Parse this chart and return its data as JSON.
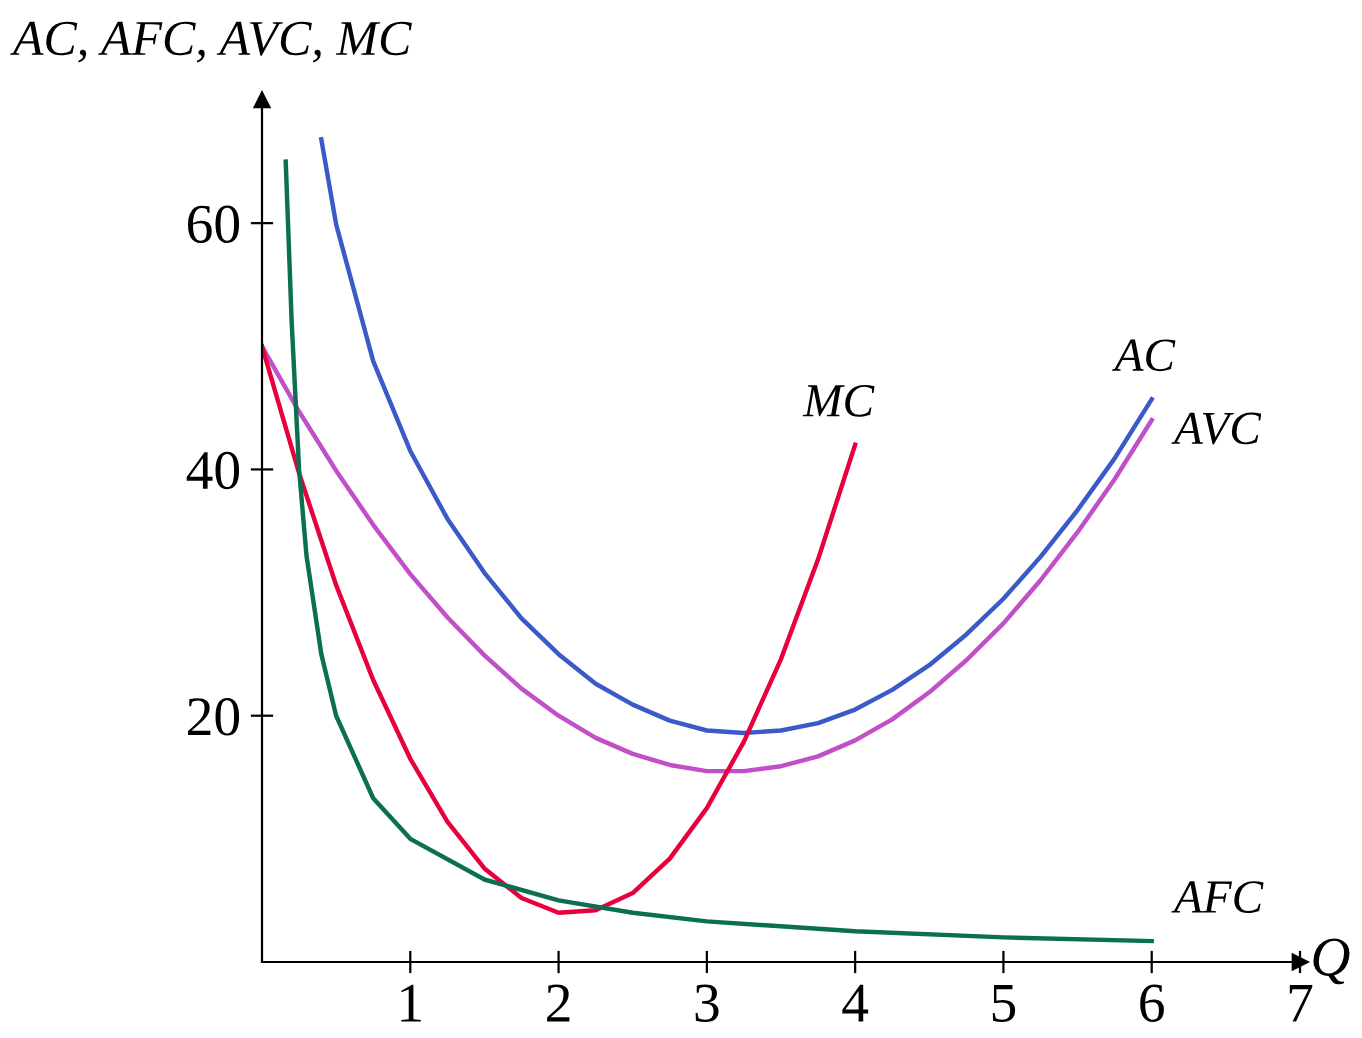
{
  "chart_data": {
    "type": "line",
    "xlabel": "Q",
    "ylabel": "AC, AFC, AVC, MC",
    "xlim": [
      0,
      7
    ],
    "ylim": [
      0,
      70
    ],
    "xticks": [
      1,
      2,
      3,
      4,
      5,
      6,
      7
    ],
    "yticks": [
      20,
      40,
      60
    ],
    "grid": false,
    "legend": false,
    "marker": "none",
    "line_style": "solid",
    "series": [
      {
        "name": "AC",
        "color": "#3a5bc7",
        "x": [
          0.4,
          0.5,
          0.75,
          1,
          1.25,
          1.5,
          1.75,
          2,
          2.25,
          2.5,
          2.75,
          3,
          3.25,
          3.5,
          3.75,
          4,
          4.25,
          4.5,
          4.75,
          5,
          5.25,
          5.5,
          5.75,
          6
        ],
        "values": [
          66.8,
          59.9,
          48.8,
          41.5,
          36.0,
          31.6,
          27.9,
          25.0,
          22.6,
          20.9,
          19.6,
          18.8,
          18.6,
          18.8,
          19.4,
          20.5,
          22.1,
          24.1,
          26.6,
          29.5,
          32.9,
          36.7,
          40.9,
          45.7
        ]
      },
      {
        "name": "AVC",
        "color": "#c04fc8",
        "x": [
          0,
          0.25,
          0.5,
          0.75,
          1,
          1.25,
          1.5,
          1.75,
          2,
          2.25,
          2.5,
          2.75,
          3,
          3.25,
          3.5,
          3.75,
          4,
          4.25,
          4.5,
          4.75,
          5,
          5.25,
          5.5,
          5.75,
          6
        ],
        "values": [
          50,
          44.7,
          39.9,
          35.5,
          31.5,
          28.0,
          24.9,
          22.2,
          20.0,
          18.2,
          16.9,
          16.0,
          15.5,
          15.5,
          15.9,
          16.7,
          18.0,
          19.7,
          21.9,
          24.5,
          27.5,
          31.0,
          34.9,
          39.2,
          44.0
        ]
      },
      {
        "name": "MC",
        "color": "#e8003d",
        "x": [
          0,
          0.25,
          0.5,
          0.75,
          1,
          1.25,
          1.5,
          1.75,
          2,
          2.25,
          2.5,
          2.75,
          3,
          3.25,
          3.5,
          3.75,
          4
        ],
        "values": [
          50,
          39.7,
          30.6,
          22.9,
          16.5,
          11.4,
          7.6,
          5.2,
          4.0,
          4.2,
          5.6,
          8.4,
          12.5,
          17.9,
          24.6,
          32.7,
          42.0
        ]
      },
      {
        "name": "AFC",
        "color": "#0a7050",
        "x": [
          0.16,
          0.2,
          0.25,
          0.3,
          0.4,
          0.5,
          0.75,
          1,
          1.5,
          2,
          2.5,
          3,
          4,
          5,
          6
        ],
        "values": [
          65,
          52,
          40,
          33,
          25,
          20,
          13.3,
          10,
          6.7,
          5,
          4,
          3.3,
          2.5,
          2,
          1.7
        ]
      }
    ]
  }
}
